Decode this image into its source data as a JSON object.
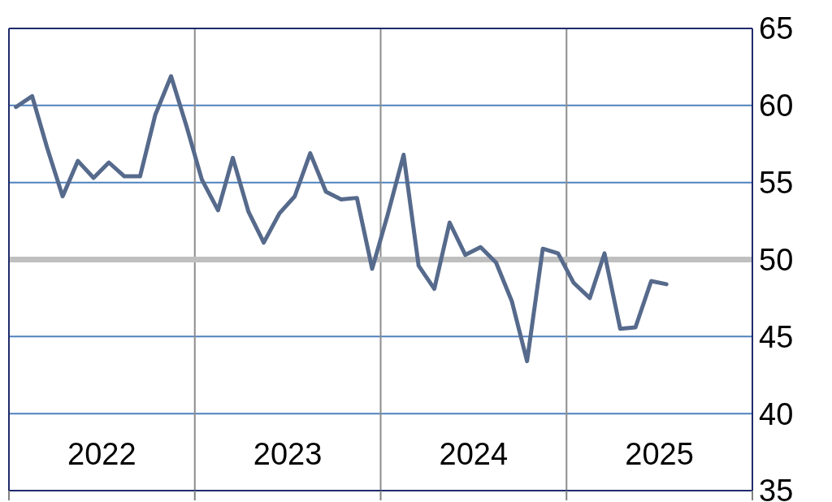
{
  "chart_data": {
    "type": "line",
    "x": [
      "2022-01-15",
      "2022-02-15",
      "2022-03-15",
      "2022-04-15",
      "2022-05-15",
      "2022-06-15",
      "2022-07-15",
      "2022-08-15",
      "2022-09-15",
      "2022-10-15",
      "2022-11-15",
      "2022-12-15",
      "2023-01-15",
      "2023-02-15",
      "2023-03-15",
      "2023-04-15",
      "2023-05-15",
      "2023-06-15",
      "2023-07-15",
      "2023-08-15",
      "2023-09-15",
      "2023-10-15",
      "2023-11-15",
      "2023-12-15",
      "2024-01-15",
      "2024-02-15",
      "2024-03-15",
      "2024-04-15",
      "2024-05-15",
      "2024-06-15",
      "2024-07-15",
      "2024-08-15",
      "2024-09-15",
      "2024-10-15",
      "2024-11-15",
      "2024-12-15",
      "2025-01-15",
      "2025-02-15",
      "2025-03-15",
      "2025-04-15",
      "2025-05-15",
      "2025-06-15",
      "2025-07-15"
    ],
    "series": [
      {
        "color": "#566a8c",
        "values": [
          59.9,
          60.6,
          57.3,
          54.1,
          56.4,
          55.3,
          56.3,
          55.4,
          55.4,
          59.4,
          61.9,
          58.7,
          55.2,
          53.2,
          56.6,
          53.1,
          51.1,
          53.0,
          54.1,
          56.9,
          54.4,
          53.9,
          54.0,
          49.4,
          52.9,
          56.8,
          49.6,
          48.1,
          52.4,
          50.3,
          50.8,
          49.8,
          47.3,
          43.4,
          50.7,
          50.4,
          48.5,
          47.5,
          50.4,
          45.5,
          45.6,
          48.6,
          48.4
        ]
      }
    ],
    "xlim": [
      "2022-01-01",
      "2026-01-01"
    ],
    "xticks": [
      {
        "value": "2022-01-01",
        "label": null
      },
      {
        "value": "2022-07-01",
        "label": "2022"
      },
      {
        "value": "2023-01-01",
        "label": null
      },
      {
        "value": "2023-07-01",
        "label": "2023"
      },
      {
        "value": "2024-01-01",
        "label": null
      },
      {
        "value": "2024-07-01",
        "label": "2024"
      },
      {
        "value": "2025-01-01",
        "label": null
      },
      {
        "value": "2025-07-01",
        "label": "2025"
      },
      {
        "value": "2026-01-01",
        "label": null
      }
    ],
    "ylim": [
      35,
      65
    ],
    "yticks": [
      35,
      40,
      45,
      50,
      55,
      60,
      65
    ],
    "ref_lines": [
      {
        "axis": "y",
        "value": 50,
        "color": "#bfbfbf"
      }
    ],
    "grid": true,
    "marker": "none",
    "line_style": "solid"
  }
}
